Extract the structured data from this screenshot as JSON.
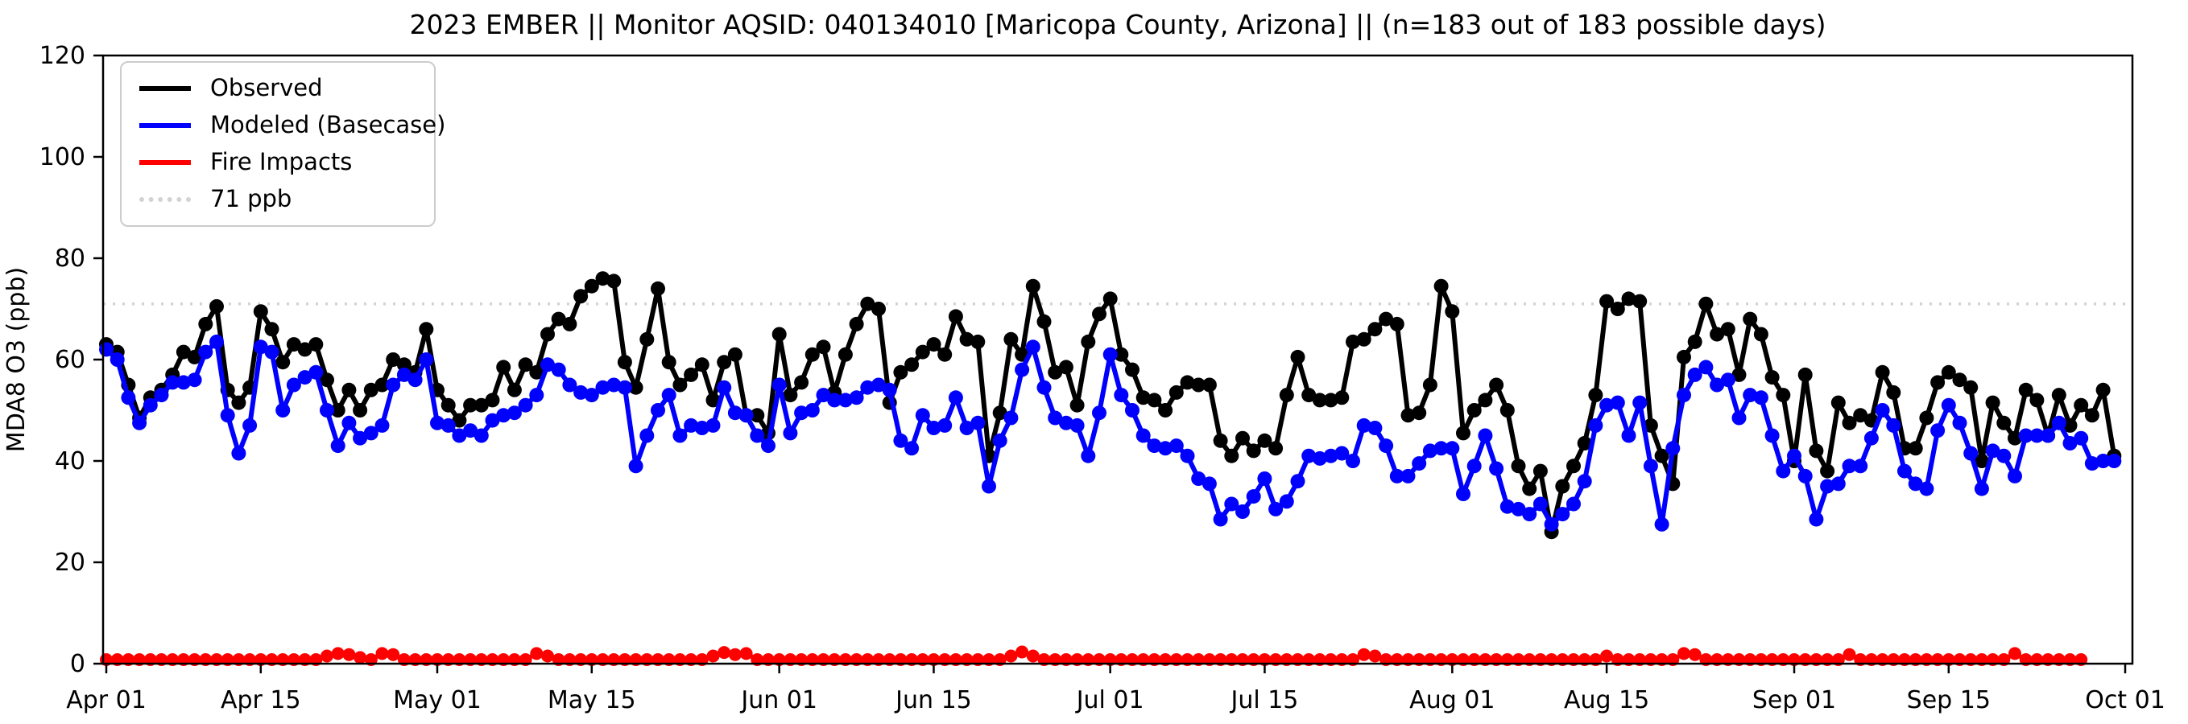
{
  "chart_data": {
    "type": "line",
    "title": "2023 EMBER || Monitor AQSID: 040134010 [Maricopa County, Arizona] || (n=183 out of 183 possible days)",
    "ylabel": "MDA8 O3 (ppb)",
    "ylim": [
      0,
      120
    ],
    "yticks": [
      0,
      20,
      40,
      60,
      80,
      100,
      120
    ],
    "grid": false,
    "legend_position": "upper left",
    "x_range_days": 183,
    "xticks": [
      {
        "day": 0,
        "label": "Apr 01"
      },
      {
        "day": 14,
        "label": "Apr 15"
      },
      {
        "day": 30,
        "label": "May 01"
      },
      {
        "day": 44,
        "label": "May 15"
      },
      {
        "day": 61,
        "label": "Jun 01"
      },
      {
        "day": 75,
        "label": "Jun 15"
      },
      {
        "day": 91,
        "label": "Jul 01"
      },
      {
        "day": 105,
        "label": "Jul 15"
      },
      {
        "day": 122,
        "label": "Aug 01"
      },
      {
        "day": 136,
        "label": "Aug 15"
      },
      {
        "day": 153,
        "label": "Sep 01"
      },
      {
        "day": 167,
        "label": "Sep 15"
      },
      {
        "day": 183,
        "label": "Oct 01"
      }
    ],
    "threshold": {
      "value": 71,
      "label": "71 ppb",
      "color": "#d3d3d3",
      "style": "dotted"
    },
    "series": [
      {
        "name": "Observed",
        "color": "#000000",
        "values": [
          63,
          61.5,
          55,
          48.5,
          52.5,
          54,
          57,
          61.5,
          60.5,
          67,
          70.5,
          54,
          51.5,
          54.5,
          69.5,
          66,
          59.5,
          63,
          62,
          63,
          56,
          50,
          54,
          50,
          54,
          55,
          60,
          59,
          57.5,
          66,
          54,
          51,
          48,
          51,
          51,
          52,
          58.5,
          54,
          59,
          57.5,
          65,
          68,
          67,
          72.5,
          74.5,
          76,
          75.5,
          59.5,
          54.5,
          64,
          74,
          59.5,
          55,
          57,
          59,
          52,
          59.5,
          61,
          49,
          49,
          45.5,
          65,
          53,
          55.5,
          61,
          62.5,
          53.5,
          61,
          67,
          71,
          70,
          51.5,
          57.5,
          59,
          61.5,
          63,
          61,
          68.5,
          64,
          63.5,
          41,
          49.5,
          64,
          61,
          74.5,
          67.5,
          57.5,
          58.5,
          51,
          63.5,
          69,
          72,
          61,
          58,
          52.5,
          52,
          50,
          53.5,
          55.5,
          55,
          55,
          44,
          41,
          44.5,
          42,
          44,
          42.5,
          53,
          60.5,
          53,
          52,
          52,
          52.5,
          63.5,
          64,
          66,
          68,
          67,
          49,
          49.5,
          55,
          74.5,
          69.5,
          45.5,
          50,
          52,
          55,
          50,
          39,
          34.5,
          38,
          26,
          35,
          39,
          43.5,
          53,
          71.5,
          70,
          72,
          71.5,
          47,
          41,
          35.5,
          60.5,
          63.5,
          71,
          65,
          66,
          57,
          68,
          65,
          56.5,
          53,
          40,
          57,
          42,
          38,
          51.5,
          47.5,
          49,
          48,
          57.5,
          53.5,
          42.5,
          42.5,
          48.5,
          55.5,
          57.5,
          56,
          54.5,
          40,
          51.5,
          47.5,
          44.5,
          54,
          52,
          45,
          53,
          47,
          51,
          49,
          54,
          41
        ]
      },
      {
        "name": "Modeled (Basecase)",
        "color": "#0000ff",
        "values": [
          62,
          60,
          52.5,
          47.5,
          51,
          53,
          55.5,
          55.5,
          56,
          61.5,
          63.5,
          49,
          41.5,
          47,
          62.5,
          61.5,
          50,
          55,
          56.5,
          57.5,
          50,
          43,
          47.5,
          44.5,
          45.5,
          47,
          55,
          57,
          56,
          60,
          47.5,
          47,
          45,
          46,
          45,
          48,
          49,
          49.5,
          51,
          53,
          59,
          58,
          55,
          53.5,
          53,
          54.5,
          55,
          54.5,
          39,
          45,
          50,
          53,
          45,
          47,
          46.5,
          47,
          54.5,
          49.5,
          49,
          45,
          43,
          55,
          45.5,
          49.5,
          50,
          53,
          52,
          52,
          52.5,
          54.5,
          55,
          54,
          44,
          42.5,
          49,
          46.5,
          47,
          52.5,
          46.5,
          47.5,
          35,
          44,
          48.5,
          58,
          62.5,
          54.5,
          48.5,
          47.5,
          47,
          41,
          49.5,
          61,
          53,
          50,
          45,
          43,
          42.5,
          43,
          41,
          36.5,
          35.5,
          28.5,
          31.5,
          30,
          33,
          36.5,
          30.5,
          32,
          36,
          41,
          40.5,
          41,
          41.5,
          40,
          47,
          46.5,
          43,
          37,
          37,
          39.5,
          42,
          42.5,
          42.5,
          33.5,
          39,
          45,
          38.5,
          31,
          30.5,
          29.5,
          31.5,
          27.5,
          29.5,
          31.5,
          36,
          47,
          51,
          51.5,
          45,
          51.5,
          39,
          27.5,
          42.5,
          53,
          57,
          58.5,
          55,
          56,
          48.5,
          53,
          52.5,
          45,
          38,
          41,
          37,
          28.5,
          35,
          35.5,
          39,
          39,
          44.5,
          50,
          47,
          38,
          35.5,
          34.5,
          46,
          51,
          47.5,
          41.5,
          34.5,
          42,
          41,
          37,
          45,
          45,
          45,
          47.5,
          43.5,
          44.5,
          39.5,
          40,
          40
        ]
      },
      {
        "name": "Fire Impacts",
        "color": "#ff0000",
        "values": [
          0.8,
          0.8,
          0.8,
          0.8,
          0.8,
          0.8,
          0.8,
          0.8,
          0.8,
          0.8,
          0.8,
          0.8,
          0.8,
          0.8,
          0.8,
          0.8,
          0.8,
          0.8,
          0.8,
          0.8,
          1.5,
          2,
          1.8,
          1.2,
          0.8,
          2,
          1.8,
          0.8,
          0.8,
          0.8,
          0.8,
          0.8,
          0.8,
          0.8,
          0.8,
          0.8,
          0.8,
          0.8,
          0.8,
          2,
          1.5,
          0.8,
          0.8,
          0.8,
          0.8,
          0.8,
          0.8,
          0.8,
          0.8,
          0.8,
          0.8,
          0.8,
          0.8,
          0.8,
          0.8,
          1.5,
          2.2,
          1.8,
          2,
          0.8,
          0.8,
          0.8,
          0.8,
          0.8,
          0.8,
          0.8,
          0.8,
          0.8,
          0.8,
          0.8,
          0.8,
          0.8,
          0.8,
          0.8,
          0.8,
          0.8,
          0.8,
          0.8,
          0.8,
          0.8,
          0.8,
          0.8,
          1.5,
          2.3,
          1.5,
          0.8,
          0.8,
          0.8,
          0.8,
          0.8,
          0.8,
          0.8,
          0.8,
          0.8,
          0.8,
          0.8,
          0.8,
          0.8,
          0.8,
          0.8,
          0.8,
          0.8,
          0.8,
          0.8,
          0.8,
          0.8,
          0.8,
          0.8,
          0.8,
          0.8,
          0.8,
          0.8,
          0.8,
          0.8,
          1.8,
          1.5,
          0.8,
          0.8,
          0.8,
          0.8,
          0.8,
          0.8,
          0.8,
          0.8,
          0.8,
          0.8,
          0.8,
          0.8,
          0.8,
          0.8,
          0.8,
          0.8,
          0.8,
          0.8,
          0.8,
          0.8,
          1.5,
          0.8,
          0.8,
          0.8,
          0.8,
          0.8,
          0.8,
          2,
          1.8,
          0.8,
          0.8,
          0.8,
          0.8,
          0.8,
          0.8,
          0.8,
          0.8,
          0.8,
          0.8,
          0.8,
          0.8,
          0.8,
          1.8,
          0.8,
          0.8,
          0.8,
          0.8,
          0.8,
          0.8,
          0.8,
          0.8,
          0.8,
          0.8,
          0.8,
          0.8,
          0.8,
          0.8,
          2,
          0.8,
          0.8,
          0.8,
          0.8,
          0.8,
          0.8
        ]
      }
    ]
  }
}
